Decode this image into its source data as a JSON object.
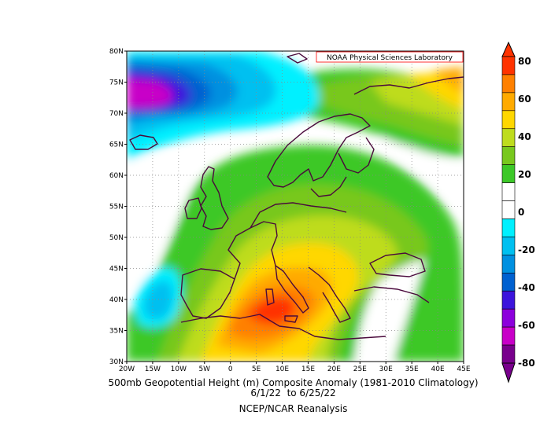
{
  "credit": "NOAA Physical Sciences Laboratory",
  "title_line1": "500mb Geopotential Height (m) Composite Anomaly (1981-2010 Climatology)",
  "title_line2": "6/1/22  to 6/25/22",
  "title_line3": "NCEP/NCAR Reanalysis",
  "lat_labels": [
    "80N",
    "75N",
    "70N",
    "65N",
    "60N",
    "55N",
    "50N",
    "45N",
    "40N",
    "35N",
    "30N"
  ],
  "lon_labels": [
    "20W",
    "15W",
    "10W",
    "5W",
    "0",
    "5E",
    "10E",
    "15E",
    "20E",
    "25E",
    "30E",
    "35E",
    "40E",
    "45E"
  ],
  "colorbar": {
    "labels": [
      "80",
      "60",
      "40",
      "20",
      "0",
      "-20",
      "-40",
      "-60",
      "-80"
    ],
    "colors": [
      "#ff3300",
      "#ff8000",
      "#ffaa00",
      "#ffd700",
      "#bedc1e",
      "#78c81e",
      "#3cc828",
      "#ffffff",
      "#ffffff",
      "#00f0ff",
      "#00c0f0",
      "#0090e0",
      "#0060d0",
      "#3c14dc",
      "#8c00dc",
      "#c800c8",
      "#78008c"
    ]
  },
  "map": {
    "lon_range": [
      -20,
      45
    ],
    "lat_range": [
      30,
      80
    ],
    "units": "m",
    "contour_interval": 10,
    "background": "#ffffff"
  }
}
